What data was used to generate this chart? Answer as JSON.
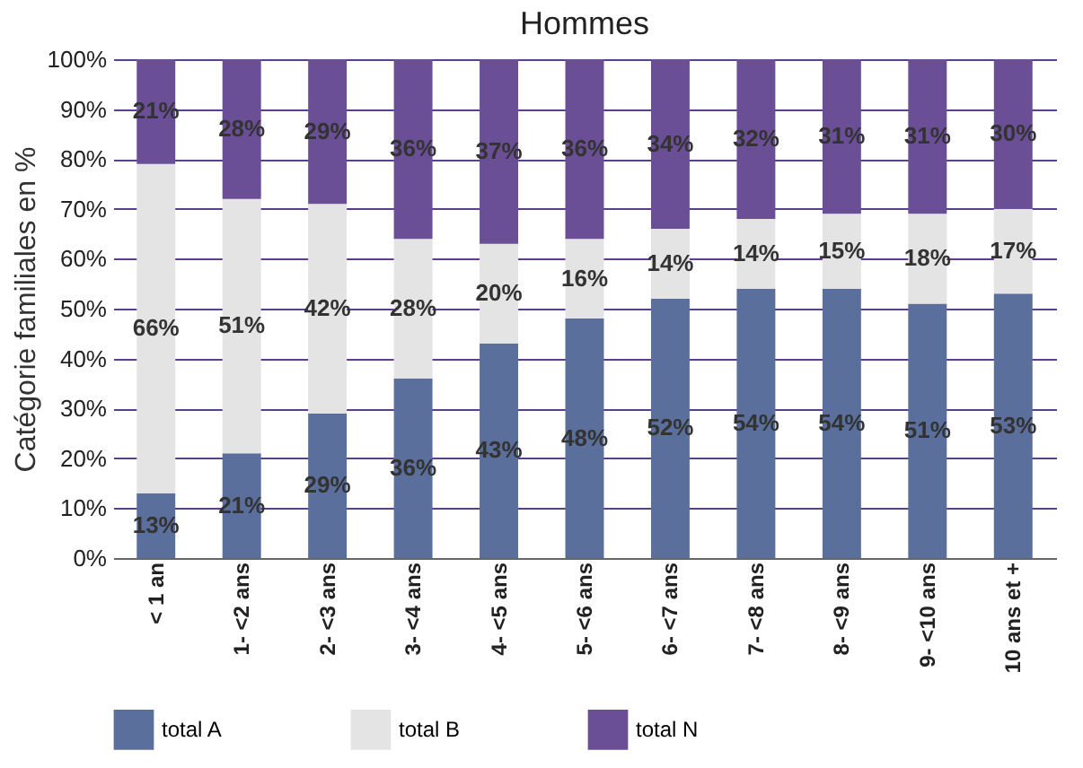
{
  "chart_data": {
    "type": "bar",
    "title": "Hommes",
    "ylabel": "Catégorie familiales en %",
    "stacked": true,
    "legend": "bottom",
    "grid": "y",
    "categories": [
      "< 1 an",
      "1- <2 ans",
      "2- <3 ans",
      "3- <4 ans",
      "4- <5 ans",
      "5- <6 ans",
      "6- <7 ans",
      "7- <8 ans",
      "8- <9 ans",
      "9- <10 ans",
      "10 ans et +"
    ],
    "ylim": [
      0,
      100
    ],
    "yticks": [
      {
        "value": 0,
        "label": "0%"
      },
      {
        "value": 10,
        "label": "10%"
      },
      {
        "value": 20,
        "label": "20%"
      },
      {
        "value": 30,
        "label": "30%"
      },
      {
        "value": 40,
        "label": "40%"
      },
      {
        "value": 50,
        "label": "50%"
      },
      {
        "value": 60,
        "label": "60%"
      },
      {
        "value": 70,
        "label": "70%"
      },
      {
        "value": 80,
        "label": "80%"
      },
      {
        "value": 90,
        "label": "90%"
      },
      {
        "value": 100,
        "label": "100%"
      }
    ],
    "series": [
      {
        "name": "total A",
        "color": "#5b6f9c",
        "values": [
          13,
          21,
          29,
          36,
          43,
          48,
          52,
          54,
          54,
          51,
          53
        ],
        "value_labels": [
          "13%",
          "21%",
          "29%",
          "36%",
          "43%",
          "48%",
          "52%",
          "54%",
          "54%",
          "51%",
          "53%"
        ]
      },
      {
        "name": "total B",
        "color": "#e4e4e4",
        "values": [
          66,
          51,
          42,
          28,
          20,
          16,
          14,
          14,
          15,
          18,
          17
        ],
        "value_labels": [
          "66%",
          "51%",
          "42%",
          "28%",
          "20%",
          "16%",
          "14%",
          "14%",
          "15%",
          "18%",
          "17%"
        ]
      },
      {
        "name": "total N",
        "color": "#6b4f96",
        "values": [
          21,
          28,
          29,
          36,
          37,
          36,
          34,
          32,
          31,
          31,
          30
        ],
        "value_labels": [
          "21%",
          "28%",
          "29%",
          "36%",
          "37%",
          "36%",
          "34%",
          "32%",
          "31%",
          "31%",
          "30%"
        ]
      }
    ]
  }
}
